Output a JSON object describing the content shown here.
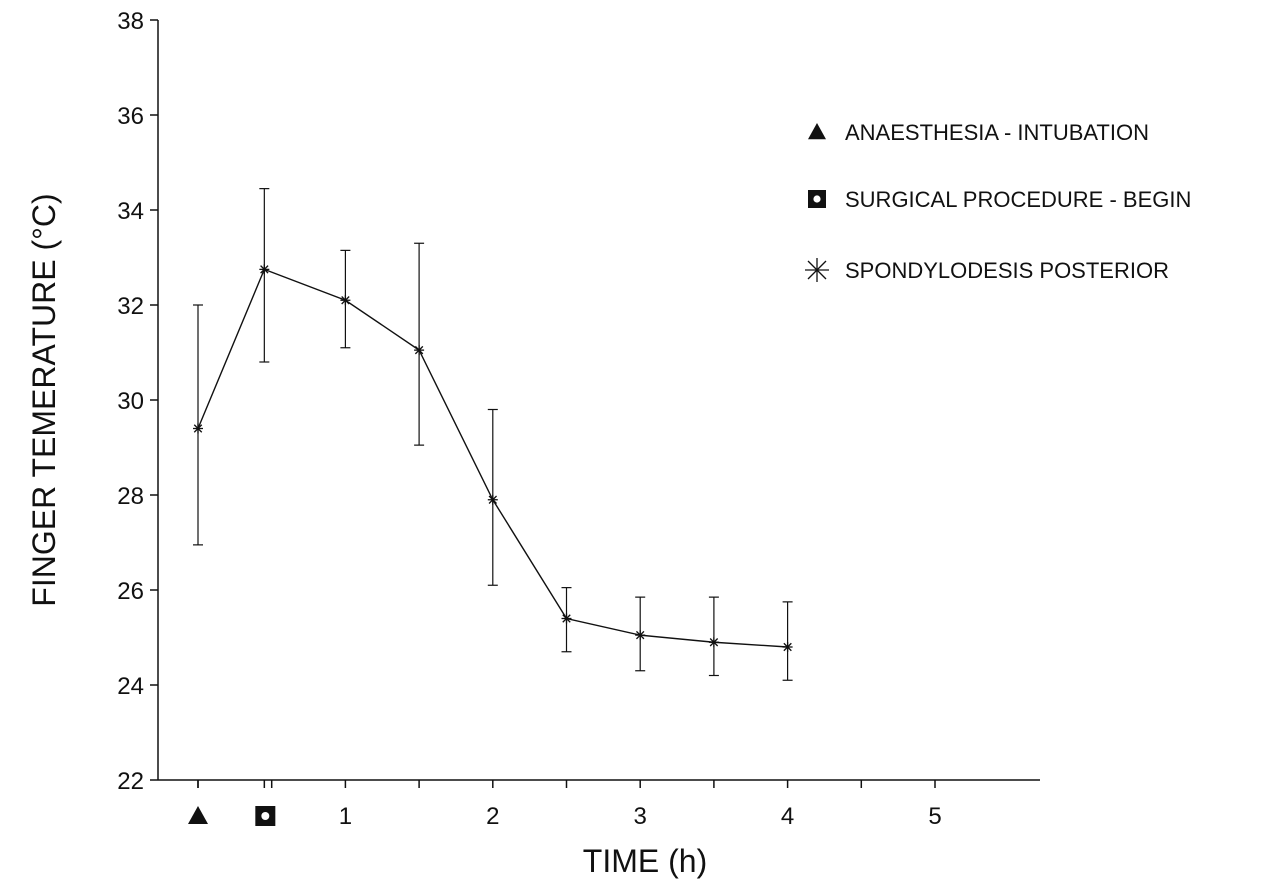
{
  "chart_data": {
    "type": "line",
    "title": "",
    "xlabel": "TIME (h)",
    "ylabel": "FINGER TEMERATURE (°C)",
    "ylim": [
      22,
      38
    ],
    "xlim": [
      -0.25,
      5.2
    ],
    "y_ticks": [
      22,
      24,
      26,
      28,
      30,
      32,
      34,
      36,
      38
    ],
    "x_ticks": [
      1,
      2,
      3,
      4,
      5
    ],
    "x_minor_ticks": [
      0.5,
      1.5,
      2.5,
      3.5,
      4.5
    ],
    "x_event_markers": [
      {
        "x": 0,
        "symbol": "triangle",
        "label": "ANAESTHESIA - INTUBATION"
      },
      {
        "x": 0.45,
        "symbol": "square-dot",
        "label": "SURGICAL PROCEDURE - BEGIN"
      }
    ],
    "legend_position": "right",
    "series": [
      {
        "name": "SPONDYLODESIS POSTERIOR",
        "marker": "asterisk",
        "x": [
          0,
          0.45,
          1.0,
          1.5,
          2.0,
          2.5,
          3.0,
          3.5,
          4.0
        ],
        "values": [
          29.4,
          32.75,
          32.1,
          31.05,
          27.9,
          25.4,
          25.05,
          24.9,
          24.8
        ],
        "error_low": [
          26.95,
          30.8,
          31.1,
          29.05,
          26.1,
          24.7,
          24.3,
          24.2,
          24.1
        ],
        "error_high": [
          32.0,
          34.45,
          33.15,
          33.3,
          29.8,
          26.05,
          25.85,
          25.85,
          25.75
        ]
      }
    ],
    "tick_values_shown": [
      1,
      2,
      3,
      4,
      5
    ],
    "grid": false
  },
  "legend": {
    "items": [
      {
        "symbol": "triangle",
        "label": "ANAESTHESIA - INTUBATION"
      },
      {
        "symbol": "square-dot",
        "label": "SURGICAL PROCEDURE - BEGIN"
      },
      {
        "symbol": "asterisk",
        "label": "SPONDYLODESIS POSTERIOR"
      }
    ]
  },
  "colors": {
    "ink": "#111111",
    "background": "#ffffff"
  }
}
